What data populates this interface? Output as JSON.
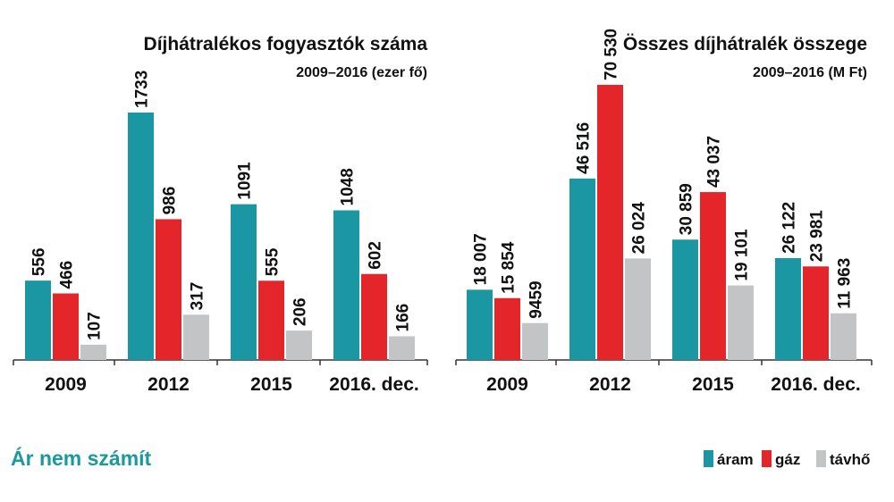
{
  "colors": {
    "aram": "#1b97a3",
    "gaz": "#e42529",
    "tavho": "#c3c4c6",
    "footer_title": "#1a9a9a"
  },
  "footer": {
    "title": "Ár nem számít"
  },
  "legend": {
    "items": [
      {
        "label": "áram",
        "color": "#1b97a3"
      },
      {
        "label": "gáz",
        "color": "#e42529"
      },
      {
        "label": "távhő",
        "color": "#c3c4c6"
      }
    ]
  },
  "chart_data": [
    {
      "type": "bar",
      "title": "Díjhátralékos fogyasztók száma",
      "subtitle": "2009–2016 (ezer fő)",
      "categories": [
        "2009",
        "2012",
        "2015",
        "2016. dec."
      ],
      "series": [
        {
          "name": "áram",
          "values": [
            556,
            1733,
            1091,
            1048
          ],
          "labels": [
            "556",
            "1733",
            "1091",
            "1048"
          ]
        },
        {
          "name": "gáz",
          "values": [
            466,
            986,
            555,
            602
          ],
          "labels": [
            "466",
            "986",
            "555",
            "602"
          ]
        },
        {
          "name": "távhő",
          "values": [
            107,
            317,
            206,
            166
          ],
          "labels": [
            "107",
            "317",
            "206",
            "166"
          ]
        }
      ],
      "ylim": [
        0,
        1733
      ]
    },
    {
      "type": "bar",
      "title": "Összes díjhátralék összege",
      "subtitle": "2009–2016 (M Ft)",
      "categories": [
        "2009",
        "2012",
        "2015",
        "2016. dec."
      ],
      "series": [
        {
          "name": "áram",
          "values": [
            18007,
            46516,
            30859,
            26122
          ],
          "labels": [
            "18 007",
            "46 516",
            "30 859",
            "26 122"
          ]
        },
        {
          "name": "gáz",
          "values": [
            15854,
            70530,
            43037,
            23981
          ],
          "labels": [
            "15 854",
            "70 530",
            "43 037",
            "23 981"
          ]
        },
        {
          "name": "távhő",
          "values": [
            9459,
            26024,
            19101,
            11963
          ],
          "labels": [
            "9459",
            "26 024",
            "19 101",
            "11 963"
          ]
        }
      ],
      "ylim": [
        0,
        70530
      ]
    }
  ]
}
